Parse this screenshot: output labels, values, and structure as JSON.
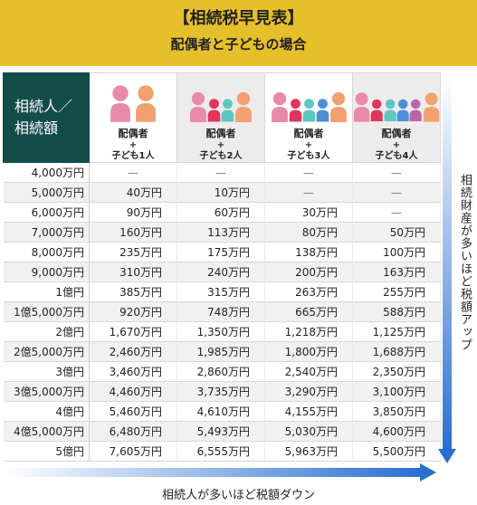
{
  "title": "【相続税早見表】",
  "subtitle": "配偶者と子どもの場合",
  "corner_label_line1": "相続人／",
  "corner_label_line2": "相続額",
  "columns": [
    {
      "line1": "配偶者",
      "line2": "+",
      "line3": "子ども1人",
      "children": 1
    },
    {
      "line1": "配偶者",
      "line2": "+",
      "line3": "子ども2人",
      "children": 2
    },
    {
      "line1": "配偶者",
      "line2": "+",
      "line3": "子ども3人",
      "children": 3
    },
    {
      "line1": "配偶者",
      "line2": "+",
      "line3": "子ども4人",
      "children": 4
    }
  ],
  "rows": [
    {
      "label": "4,000万円",
      "values": [
        "—",
        "—",
        "—",
        "—"
      ]
    },
    {
      "label": "5,000万円",
      "values": [
        "40万円",
        "10万円",
        "—",
        "—"
      ]
    },
    {
      "label": "6,000万円",
      "values": [
        "90万円",
        "60万円",
        "30万円",
        "—"
      ]
    },
    {
      "label": "7,000万円",
      "values": [
        "160万円",
        "113万円",
        "80万円",
        "50万円"
      ]
    },
    {
      "label": "8,000万円",
      "values": [
        "235万円",
        "175万円",
        "138万円",
        "100万円"
      ]
    },
    {
      "label": "9,000万円",
      "values": [
        "310万円",
        "240万円",
        "200万円",
        "163万円"
      ]
    },
    {
      "label": "1億円",
      "values": [
        "385万円",
        "315万円",
        "263万円",
        "255万円"
      ]
    },
    {
      "label": "1億5,000万円",
      "values": [
        "920万円",
        "748万円",
        "665万円",
        "588万円"
      ]
    },
    {
      "label": "2億円",
      "values": [
        "1,670万円",
        "1,350万円",
        "1,218万円",
        "1,125万円"
      ]
    },
    {
      "label": "2億5,000万円",
      "values": [
        "2,460万円",
        "1,985万円",
        "1,800万円",
        "1,688万円"
      ]
    },
    {
      "label": "3億円",
      "values": [
        "3,460万円",
        "2,860万円",
        "2,540万円",
        "2,350万円"
      ]
    },
    {
      "label": "3億5,000万円",
      "values": [
        "4,460万円",
        "3,735万円",
        "3,290万円",
        "3,100万円"
      ]
    },
    {
      "label": "4億円",
      "values": [
        "5,460万円",
        "4,610万円",
        "4,155万円",
        "3,850万円"
      ]
    },
    {
      "label": "4億5,000万円",
      "values": [
        "6,480万円",
        "5,493万円",
        "5,030万円",
        "4,600万円"
      ]
    },
    {
      "label": "5億円",
      "values": [
        "7,605万円",
        "6,555万円",
        "5,963万円",
        "5,500万円"
      ]
    }
  ],
  "side_note": "相続財産が多いほど税額アップ",
  "bottom_note": "相続人が多いほど税額ダウン",
  "colors": {
    "banner": "#e6c02a",
    "corner": "#134d4a",
    "spouse": "#e98aaa",
    "parent": "#f2a070",
    "child_red": "#e0355a",
    "child_teal": "#5dc7c0",
    "child_blue": "#4a8fd8",
    "child_purple": "#b766a8",
    "arrow_start": "#ffffff",
    "arrow_end": "#2a6fd0"
  }
}
